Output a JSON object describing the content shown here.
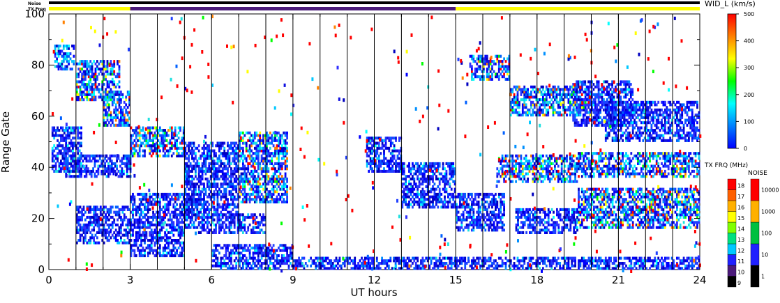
{
  "chart_data": {
    "type": "heatmap",
    "xlabel": "UT hours",
    "ylabel": "Range Gate",
    "xlim": [
      0,
      24
    ],
    "ylim": [
      0,
      100
    ],
    "xticks": [
      "0",
      "3",
      "6",
      "9",
      "12",
      "15",
      "18",
      "21",
      "24"
    ],
    "yticks": [
      "0",
      "20",
      "40",
      "60",
      "80",
      "100"
    ],
    "scan_boundaries_hours": [
      1,
      2,
      3,
      4,
      5,
      6,
      7,
      8,
      9,
      10,
      11,
      12,
      13,
      14,
      15,
      16,
      17,
      18,
      19,
      20,
      21,
      22,
      23
    ],
    "top_bars": {
      "noise_label": "Noise",
      "txfreq_label": "TX Freq",
      "noise_color": "#000000",
      "txfreq_segments": [
        {
          "start": 0,
          "end": 3,
          "color": "#ffff00"
        },
        {
          "start": 3,
          "end": 15,
          "color": "#4b1a7a"
        },
        {
          "start": 15,
          "end": 24,
          "color": "#ffff00"
        }
      ]
    },
    "echo_regions": [
      {
        "t0": 0.1,
        "t1": 1.2,
        "r0": 38,
        "r1": 56,
        "level": "low"
      },
      {
        "t0": 0.6,
        "t1": 3.0,
        "r0": 36,
        "r1": 45,
        "level": "low"
      },
      {
        "t0": 0.2,
        "t1": 0.9,
        "r0": 78,
        "r1": 88,
        "level": "mid"
      },
      {
        "t0": 1.0,
        "t1": 2.6,
        "r0": 66,
        "r1": 82,
        "level": "mixed"
      },
      {
        "t0": 2.0,
        "t1": 3.0,
        "r0": 56,
        "r1": 70,
        "level": "mixed"
      },
      {
        "t0": 1.0,
        "t1": 3.0,
        "r0": 10,
        "r1": 25,
        "level": "low"
      },
      {
        "t0": 3.0,
        "t1": 5.5,
        "r0": 16,
        "r1": 30,
        "level": "low"
      },
      {
        "t0": 3.0,
        "t1": 5.0,
        "r0": 5,
        "r1": 16,
        "level": "low"
      },
      {
        "t0": 5.0,
        "t1": 7.0,
        "r0": 20,
        "r1": 50,
        "level": "low"
      },
      {
        "t0": 5.5,
        "t1": 8.0,
        "r0": 14,
        "r1": 22,
        "level": "low"
      },
      {
        "t0": 3.0,
        "t1": 5.0,
        "r0": 44,
        "r1": 56,
        "level": "mixed"
      },
      {
        "t0": 7.0,
        "t1": 8.8,
        "r0": 26,
        "r1": 54,
        "level": "mixed"
      },
      {
        "t0": 6.0,
        "t1": 9.0,
        "r0": 0,
        "r1": 10,
        "level": "low"
      },
      {
        "t0": 9.0,
        "t1": 24.0,
        "r0": 0,
        "r1": 5,
        "level": "low"
      },
      {
        "t0": 11.7,
        "t1": 13.0,
        "r0": 38,
        "r1": 52,
        "level": "low"
      },
      {
        "t0": 13.0,
        "t1": 15.0,
        "r0": 24,
        "r1": 42,
        "level": "low"
      },
      {
        "t0": 15.0,
        "t1": 16.8,
        "r0": 15,
        "r1": 30,
        "level": "low"
      },
      {
        "t0": 17.2,
        "t1": 19.5,
        "r0": 14,
        "r1": 24,
        "level": "low"
      },
      {
        "t0": 16.5,
        "t1": 19.5,
        "r0": 34,
        "r1": 45,
        "level": "mixed"
      },
      {
        "t0": 19.3,
        "t1": 21.5,
        "r0": 56,
        "r1": 74,
        "level": "low"
      },
      {
        "t0": 20.5,
        "t1": 24.0,
        "r0": 50,
        "r1": 66,
        "level": "low"
      },
      {
        "t0": 19.5,
        "t1": 24.0,
        "r0": 36,
        "r1": 46,
        "level": "mixed"
      },
      {
        "t0": 19.5,
        "t1": 24.0,
        "r0": 16,
        "r1": 32,
        "level": "mixed"
      },
      {
        "t0": 17.0,
        "t1": 20.0,
        "r0": 60,
        "r1": 72,
        "level": "mixed"
      },
      {
        "t0": 15.5,
        "t1": 17.0,
        "r0": 74,
        "r1": 84,
        "level": "mixed"
      }
    ],
    "width_colorbar": {
      "title": "WID_L (km/s)",
      "min": 0,
      "max": 500,
      "ticks": [
        0,
        100,
        200,
        300,
        400,
        500
      ],
      "stops": [
        "#0000ff",
        "#0080ff",
        "#00ffff",
        "#00ff00",
        "#ffff00",
        "#ff8000",
        "#ff0000"
      ]
    },
    "txfreq_scale": {
      "title": "TX FRQ (MHz)",
      "levels": [
        {
          "label": "9",
          "color": "#000000"
        },
        {
          "label": "10",
          "color": "#4b1a7a"
        },
        {
          "label": "11",
          "color": "#2020ff"
        },
        {
          "label": "12",
          "color": "#00c8ff"
        },
        {
          "label": "13",
          "color": "#00e080"
        },
        {
          "label": "14",
          "color": "#80ff00"
        },
        {
          "label": "15",
          "color": "#ffff00"
        },
        {
          "label": "16",
          "color": "#ffb000"
        },
        {
          "label": "17",
          "color": "#ff6000"
        },
        {
          "label": "18",
          "color": "#ff0000"
        }
      ]
    },
    "noise_scale": {
      "title": "NOISE",
      "levels": [
        {
          "label": "1",
          "color": "#000000"
        },
        {
          "label": "10",
          "color": "#2020ff"
        },
        {
          "label": "100",
          "color": "#00c040"
        },
        {
          "label": "1000",
          "color": "#ffb000"
        },
        {
          "label": "10000",
          "color": "#ff0000"
        }
      ]
    }
  }
}
